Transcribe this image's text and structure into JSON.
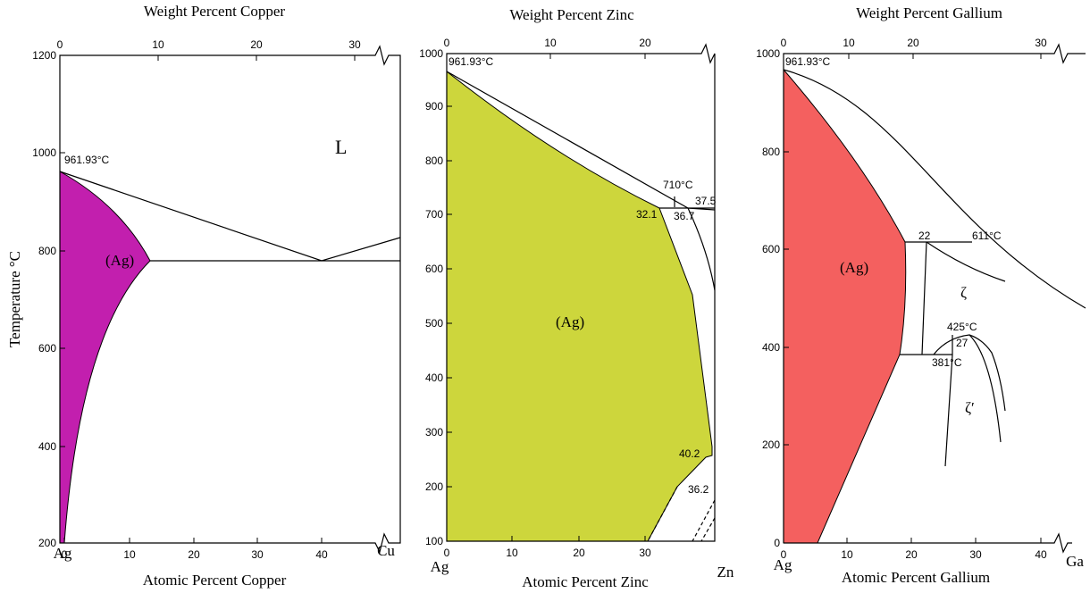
{
  "panels": [
    {
      "top_title": "Weight Percent Copper",
      "bottom_title": "Atomic Percent Copper",
      "left_element": "Ag",
      "right_element": "Cu",
      "y_axis_title": "Temperature °C",
      "top_ticks": [
        "0",
        "10",
        "20",
        "30"
      ],
      "bottom_ticks": [
        "0",
        "10",
        "20",
        "30",
        "40"
      ],
      "y_ticks": [
        "1200",
        "1000",
        "800",
        "600",
        "400",
        "200"
      ],
      "labels": [
        "961.93°C",
        "L",
        "(Ag)"
      ]
    },
    {
      "top_title": "Weight Percent Zinc",
      "bottom_title": "Atomic Percent Zinc",
      "left_element": "Ag",
      "right_element": "Zn",
      "top_ticks": [
        "0",
        "10",
        "20"
      ],
      "bottom_ticks": [
        "0",
        "10",
        "20",
        "30"
      ],
      "y_ticks": [
        "1000",
        "900",
        "800",
        "700",
        "600",
        "500",
        "400",
        "300",
        "200",
        "100"
      ],
      "labels": [
        "961.93°C",
        "710°C",
        "37.5",
        "32.1",
        "36.7",
        "(Ag)",
        "40.2",
        "36.2"
      ]
    },
    {
      "top_title": "Weight Percent Gallium",
      "bottom_title": "Atomic Percent Gallium",
      "left_element": "Ag",
      "right_element": "Ga",
      "top_ticks": [
        "0",
        "10",
        "20",
        "30"
      ],
      "bottom_ticks": [
        "0",
        "10",
        "20",
        "30",
        "40"
      ],
      "y_ticks": [
        "1000",
        "800",
        "600",
        "400",
        "200",
        "0"
      ],
      "labels": [
        "961.93°C",
        "(Ag)",
        "22",
        "611°C",
        "ζ",
        "425°C",
        "27",
        "381°C",
        "ζ′"
      ]
    }
  ]
}
